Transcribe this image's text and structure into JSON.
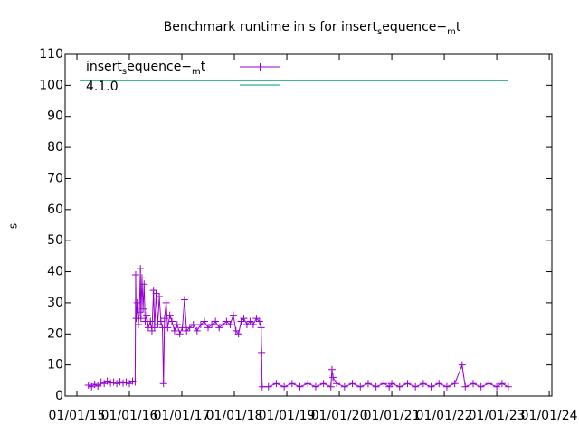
{
  "chart_data": {
    "type": "line",
    "title_parts": [
      "Benchmark runtime in s for insert",
      "s",
      "equence−",
      "m",
      "t"
    ],
    "ylabel": "s",
    "xlim": [
      2014.776,
      2024.05
    ],
    "ylim": [
      0,
      110
    ],
    "yticks": [
      0,
      10,
      20,
      30,
      40,
      50,
      60,
      70,
      80,
      90,
      100,
      110
    ],
    "xticks": [
      {
        "value": 2015,
        "label": "01/01/15"
      },
      {
        "value": 2016,
        "label": "01/01/16"
      },
      {
        "value": 2017,
        "label": "01/01/17"
      },
      {
        "value": 2018,
        "label": "01/01/18"
      },
      {
        "value": 2019,
        "label": "01/01/19"
      },
      {
        "value": 2020,
        "label": "01/01/20"
      },
      {
        "value": 2021,
        "label": "01/01/21"
      },
      {
        "value": 2022,
        "label": "01/01/22"
      },
      {
        "value": 2023,
        "label": "01/01/23"
      },
      {
        "value": 2024,
        "label": "01/01/24"
      }
    ],
    "series": [
      {
        "name_parts": [
          "insert",
          "s",
          "equence−",
          "m",
          "t"
        ],
        "color": "#9400d3",
        "marker": "+",
        "x": [
          2015.22,
          2015.28,
          2015.34,
          2015.4,
          2015.46,
          2015.52,
          2015.58,
          2015.64,
          2015.7,
          2015.76,
          2015.82,
          2015.88,
          2015.94,
          2016.0,
          2016.06,
          2016.11,
          2016.12,
          2016.13,
          2016.15,
          2016.17,
          2016.19,
          2016.21,
          2016.22,
          2016.24,
          2016.26,
          2016.28,
          2016.3,
          2016.33,
          2016.36,
          2016.4,
          2016.43,
          2016.46,
          2016.48,
          2016.51,
          2016.54,
          2016.57,
          2016.6,
          2016.63,
          2016.65,
          2016.67,
          2016.7,
          2016.73,
          2016.77,
          2016.81,
          2016.86,
          2016.91,
          2016.96,
          2017.01,
          2017.05,
          2017.09,
          2017.15,
          2017.22,
          2017.29,
          2017.36,
          2017.43,
          2017.5,
          2017.57,
          2017.64,
          2017.71,
          2017.78,
          2017.85,
          2017.92,
          2017.98,
          2018.03,
          2018.08,
          2018.13,
          2018.18,
          2018.24,
          2018.3,
          2018.36,
          2018.42,
          2018.48,
          2018.51,
          2018.52,
          2018.53,
          2018.65,
          2018.8,
          2018.95,
          2019.1,
          2019.25,
          2019.4,
          2019.55,
          2019.7,
          2019.84,
          2019.86,
          2019.88,
          2019.95,
          2020.1,
          2020.25,
          2020.4,
          2020.55,
          2020.7,
          2020.85,
          2020.95,
          2021.0,
          2021.15,
          2021.3,
          2021.45,
          2021.6,
          2021.75,
          2021.9,
          2022.05,
          2022.2,
          2022.34,
          2022.4,
          2022.55,
          2022.7,
          2022.85,
          2023.0,
          2023.1,
          2023.22
        ],
        "values": [
          3.5,
          3,
          3.8,
          3.2,
          4.5,
          4,
          4.8,
          4.2,
          4.5,
          4,
          4.6,
          4.2,
          4.5,
          4,
          4.8,
          4.5,
          39,
          25,
          30,
          23,
          27,
          41,
          25,
          38,
          28,
          36,
          24,
          26,
          22,
          24,
          21,
          34,
          22,
          33,
          23,
          32,
          24,
          22,
          4,
          25,
          30,
          22,
          26,
          24,
          21,
          23,
          20,
          22,
          31,
          21,
          22,
          23,
          21,
          23,
          24,
          22,
          23,
          24,
          22,
          23,
          24,
          23,
          26,
          21,
          20,
          24,
          25,
          23,
          24,
          23,
          25,
          24,
          22,
          14,
          3,
          3,
          4,
          3,
          4,
          3,
          4,
          3,
          4,
          3,
          8.5,
          6,
          4,
          3,
          4,
          3,
          4,
          3,
          4,
          3,
          4,
          3,
          4,
          3,
          4,
          3,
          4,
          3,
          4,
          10,
          3,
          4,
          3,
          4,
          3,
          4,
          3
        ]
      },
      {
        "name": "4.1.0",
        "color": "#009e73",
        "x": [
          2015.05,
          2023.22
        ],
        "values": [
          101.5,
          101.5
        ]
      }
    ]
  }
}
